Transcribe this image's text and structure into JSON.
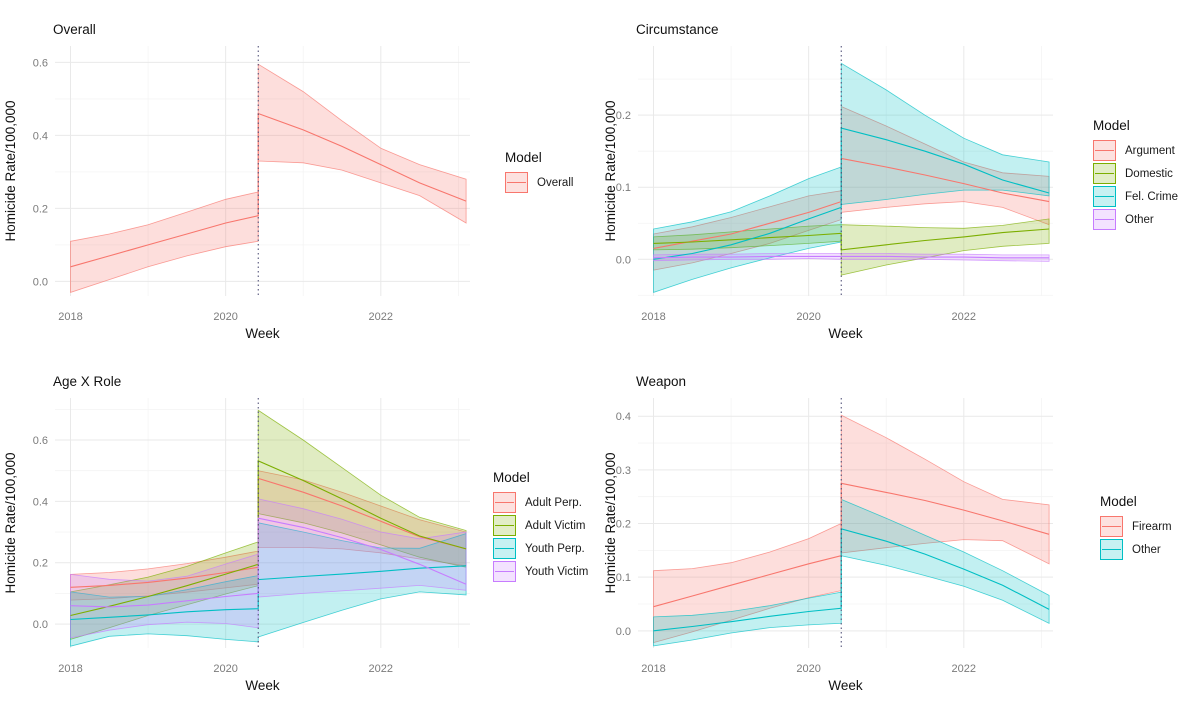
{
  "figure": {
    "background": "#ffffff",
    "grid_major_color": "#e9e9e9",
    "grid_minor_color": "#f4f4f4",
    "break_line_color": "#44446e",
    "tick_label_color": "#7b7b7b",
    "text_color": "#1a1a1a"
  },
  "chart_data": [
    {
      "id": "overall",
      "type": "area",
      "title": "Overall",
      "xlabel": "Week",
      "ylabel": "Homicide Rate/100,000",
      "legend_title": "Model",
      "legend_position": "right",
      "grid": true,
      "x_ticks": [
        2018,
        2020,
        2022
      ],
      "y_ticks": [
        0.0,
        0.2,
        0.4,
        0.6
      ],
      "xlim": [
        2017.8,
        2023.15
      ],
      "ylim": [
        -0.04,
        0.645
      ],
      "break_x": 2020.42,
      "x_pre": [
        2018,
        2018.5,
        2019,
        2019.5,
        2020,
        2020.42
      ],
      "x_post": [
        2020.42,
        2021,
        2021.5,
        2022,
        2022.5,
        2023.1
      ],
      "series": [
        {
          "name": "Overall",
          "color": "#F8766D",
          "pre": {
            "mean": [
              0.04,
              0.07,
              0.1,
              0.13,
              0.16,
              0.18
            ],
            "lower": [
              -0.03,
              0.005,
              0.04,
              0.07,
              0.095,
              0.11
            ],
            "upper": [
              0.11,
              0.13,
              0.155,
              0.19,
              0.225,
              0.245
            ]
          },
          "post": {
            "mean": [
              0.46,
              0.415,
              0.37,
              0.32,
              0.27,
              0.22
            ],
            "lower": [
              0.33,
              0.325,
              0.305,
              0.27,
              0.235,
              0.16
            ],
            "upper": [
              0.595,
              0.52,
              0.44,
              0.365,
              0.32,
              0.28
            ]
          }
        }
      ]
    },
    {
      "id": "circumstance",
      "type": "area",
      "title": "Circumstance",
      "xlabel": "Week",
      "ylabel": "Homicide Rate/100,000",
      "legend_title": "Model",
      "legend_position": "right",
      "grid": true,
      "x_ticks": [
        2018,
        2020,
        2022
      ],
      "y_ticks": [
        0.0,
        0.1,
        0.2
      ],
      "xlim": [
        2017.8,
        2023.15
      ],
      "ylim": [
        -0.051,
        0.296
      ],
      "break_x": 2020.42,
      "x_pre": [
        2018,
        2018.5,
        2019,
        2019.5,
        2020,
        2020.42
      ],
      "x_post": [
        2020.42,
        2021,
        2021.5,
        2022,
        2022.5,
        2023.1
      ],
      "series": [
        {
          "name": "Argument",
          "color": "#F8766D",
          "pre": {
            "mean": [
              0.015,
              0.025,
              0.035,
              0.05,
              0.065,
              0.08
            ],
            "lower": [
              -0.015,
              -0.005,
              0.008,
              0.022,
              0.04,
              0.055
            ],
            "upper": [
              0.035,
              0.045,
              0.058,
              0.073,
              0.088,
              0.095
            ]
          },
          "post": {
            "mean": [
              0.14,
              0.128,
              0.117,
              0.105,
              0.092,
              0.08
            ],
            "lower": [
              0.065,
              0.072,
              0.077,
              0.08,
              0.072,
              0.048
            ],
            "upper": [
              0.212,
              0.185,
              0.16,
              0.135,
              0.12,
              0.115
            ]
          }
        },
        {
          "name": "Domestic",
          "color": "#7CAE00",
          "pre": {
            "mean": [
              0.022,
              0.024,
              0.027,
              0.03,
              0.033,
              0.036
            ],
            "lower": [
              0.013,
              0.014,
              0.016,
              0.019,
              0.022,
              0.025
            ],
            "upper": [
              0.031,
              0.034,
              0.038,
              0.042,
              0.046,
              0.048
            ]
          },
          "post": {
            "mean": [
              0.013,
              0.02,
              0.026,
              0.031,
              0.037,
              0.042
            ],
            "lower": [
              -0.022,
              -0.008,
              0.002,
              0.012,
              0.018,
              0.022
            ],
            "upper": [
              0.048,
              0.046,
              0.044,
              0.043,
              0.047,
              0.056
            ]
          }
        },
        {
          "name": "Fel. Crime",
          "color": "#00BFC4",
          "pre": {
            "mean": [
              0.0,
              0.008,
              0.02,
              0.036,
              0.056,
              0.072
            ],
            "lower": [
              -0.046,
              -0.028,
              -0.012,
              0.002,
              0.015,
              0.024
            ],
            "upper": [
              0.042,
              0.052,
              0.066,
              0.088,
              0.112,
              0.128
            ]
          },
          "post": {
            "mean": [
              0.182,
              0.166,
              0.15,
              0.132,
              0.11,
              0.092
            ],
            "lower": [
              0.076,
              0.083,
              0.09,
              0.096,
              0.096,
              0.088
            ],
            "upper": [
              0.272,
              0.235,
              0.2,
              0.168,
              0.145,
              0.135
            ]
          }
        },
        {
          "name": "Other",
          "color": "#C77CFF",
          "pre": {
            "mean": [
              0.002,
              0.003,
              0.003,
              0.004,
              0.004,
              0.004
            ],
            "lower": [
              -0.002,
              -0.001,
              0.0,
              0.0,
              0.001,
              0.0
            ],
            "upper": [
              0.006,
              0.007,
              0.007,
              0.008,
              0.008,
              0.008
            ]
          },
          "post": {
            "mean": [
              0.004,
              0.004,
              0.003,
              0.003,
              0.002,
              0.002
            ],
            "lower": [
              0.0,
              0.0,
              0.0,
              -0.001,
              -0.002,
              -0.003
            ],
            "upper": [
              0.008,
              0.008,
              0.007,
              0.007,
              0.006,
              0.006
            ]
          }
        }
      ]
    },
    {
      "id": "age-x-role",
      "type": "area",
      "title": "Age X Role",
      "xlabel": "Week",
      "ylabel": "Homicide Rate/100,000",
      "legend_title": "Model",
      "legend_position": "right",
      "grid": true,
      "x_ticks": [
        2018,
        2020,
        2022
      ],
      "y_ticks": [
        0.0,
        0.2,
        0.4,
        0.6
      ],
      "xlim": [
        2017.8,
        2023.15
      ],
      "ylim": [
        -0.078,
        0.737
      ],
      "break_x": 2020.42,
      "x_pre": [
        2018,
        2018.5,
        2019,
        2019.5,
        2020,
        2020.42
      ],
      "x_post": [
        2020.42,
        2021,
        2021.5,
        2022,
        2022.5,
        2023.1
      ],
      "series": [
        {
          "name": "Adult Perp.",
          "color": "#F8766D",
          "pre": {
            "mean": [
              0.12,
              0.126,
              0.136,
              0.15,
              0.168,
              0.185
            ],
            "lower": [
              0.078,
              0.083,
              0.092,
              0.104,
              0.118,
              0.13
            ],
            "upper": [
              0.162,
              0.168,
              0.18,
              0.197,
              0.218,
              0.238
            ]
          },
          "post": {
            "mean": [
              0.475,
              0.43,
              0.385,
              0.335,
              0.285,
              0.245
            ],
            "lower": [
              0.25,
              0.25,
              0.245,
              0.232,
              0.212,
              0.19
            ],
            "upper": [
              0.5,
              0.47,
              0.43,
              0.385,
              0.34,
              0.3
            ]
          }
        },
        {
          "name": "Adult Victim",
          "color": "#7CAE00",
          "pre": {
            "mean": [
              0.028,
              0.058,
              0.09,
              0.125,
              0.163,
              0.195
            ],
            "lower": [
              -0.05,
              -0.012,
              0.028,
              0.063,
              0.098,
              0.125
            ],
            "upper": [
              0.105,
              0.128,
              0.153,
              0.188,
              0.232,
              0.268
            ]
          },
          "post": {
            "mean": [
              0.532,
              0.468,
              0.408,
              0.345,
              0.287,
              0.245
            ],
            "lower": [
              0.36,
              0.33,
              0.297,
              0.258,
              0.218,
              0.185
            ],
            "upper": [
              0.697,
              0.6,
              0.51,
              0.42,
              0.348,
              0.305
            ]
          }
        },
        {
          "name": "Youth Perp.",
          "color": "#00BFC4",
          "pre": {
            "mean": [
              0.015,
              0.022,
              0.03,
              0.04,
              0.047,
              0.05
            ],
            "lower": [
              -0.072,
              -0.04,
              -0.032,
              -0.038,
              -0.05,
              -0.058
            ],
            "upper": [
              0.105,
              0.088,
              0.09,
              0.112,
              0.138,
              0.158
            ]
          },
          "post": {
            "mean": [
              0.145,
              0.155,
              0.163,
              0.172,
              0.182,
              0.19
            ],
            "lower": [
              -0.042,
              0.005,
              0.045,
              0.082,
              0.105,
              0.095
            ],
            "upper": [
              0.33,
              0.3,
              0.272,
              0.248,
              0.247,
              0.295
            ]
          }
        },
        {
          "name": "Youth Victim",
          "color": "#C77CFF",
          "pre": {
            "mean": [
              0.06,
              0.056,
              0.062,
              0.076,
              0.09,
              0.1
            ],
            "lower": [
              -0.045,
              -0.02,
              -0.002,
              0.006,
              0.002,
              -0.012
            ],
            "upper": [
              0.162,
              0.146,
              0.14,
              0.156,
              0.196,
              0.228
            ]
          },
          "post": {
            "mean": [
              0.345,
              0.315,
              0.282,
              0.243,
              0.195,
              0.13
            ],
            "lower": [
              0.088,
              0.1,
              0.108,
              0.117,
              0.126,
              0.11
            ],
            "upper": [
              0.408,
              0.376,
              0.342,
              0.3,
              0.278,
              0.3
            ]
          }
        }
      ]
    },
    {
      "id": "weapon",
      "type": "area",
      "title": "Weapon",
      "xlabel": "Week",
      "ylabel": "Homicide Rate/100,000",
      "legend_title": "Model",
      "legend_position": "right",
      "grid": true,
      "x_ticks": [
        2018,
        2020,
        2022
      ],
      "y_ticks": [
        0.0,
        0.1,
        0.2,
        0.3,
        0.4
      ],
      "xlim": [
        2017.8,
        2023.15
      ],
      "ylim": [
        -0.032,
        0.434
      ],
      "break_x": 2020.42,
      "x_pre": [
        2018,
        2018.5,
        2019,
        2019.5,
        2020,
        2020.42
      ],
      "x_post": [
        2020.42,
        2021,
        2021.5,
        2022,
        2022.5,
        2023.1
      ],
      "series": [
        {
          "name": "Firearm",
          "color": "#F8766D",
          "pre": {
            "mean": [
              0.045,
              0.065,
              0.085,
              0.105,
              0.125,
              0.14
            ],
            "lower": [
              -0.022,
              -0.002,
              0.02,
              0.042,
              0.062,
              0.075
            ],
            "upper": [
              0.112,
              0.116,
              0.127,
              0.147,
              0.172,
              0.2
            ]
          },
          "post": {
            "mean": [
              0.275,
              0.258,
              0.243,
              0.225,
              0.205,
              0.18
            ],
            "lower": [
              0.145,
              0.155,
              0.163,
              0.17,
              0.168,
              0.125
            ],
            "upper": [
              0.402,
              0.36,
              0.32,
              0.278,
              0.245,
              0.235
            ]
          }
        },
        {
          "name": "Other",
          "color": "#00BFC4",
          "pre": {
            "mean": [
              0.0,
              0.008,
              0.017,
              0.027,
              0.036,
              0.042
            ],
            "lower": [
              -0.028,
              -0.017,
              -0.004,
              0.006,
              0.011,
              0.014
            ],
            "upper": [
              0.026,
              0.029,
              0.036,
              0.047,
              0.061,
              0.072
            ]
          },
          "post": {
            "mean": [
              0.19,
              0.167,
              0.143,
              0.115,
              0.085,
              0.04
            ],
            "lower": [
              0.14,
              0.122,
              0.103,
              0.083,
              0.057,
              0.014
            ],
            "upper": [
              0.245,
              0.21,
              0.178,
              0.147,
              0.112,
              0.066
            ]
          }
        }
      ]
    }
  ]
}
